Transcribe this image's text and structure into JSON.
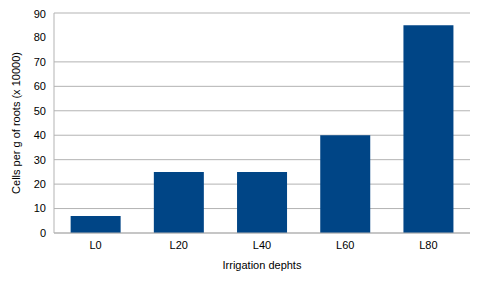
{
  "chart_data": {
    "type": "bar",
    "categories": [
      "L0",
      "L20",
      "L40",
      "L60",
      "L80"
    ],
    "values": [
      7,
      25,
      25,
      40,
      85
    ],
    "color": "#004586",
    "x_label": "Irrigation dephts",
    "y_label": "Cells per g of roots (x 10000)",
    "ylim": [
      0,
      90
    ],
    "yticks": [
      0,
      10,
      20,
      30,
      40,
      50,
      60,
      70,
      80,
      90
    ],
    "grid": true
  }
}
